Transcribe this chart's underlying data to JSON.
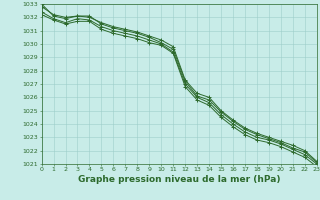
{
  "x": [
    0,
    1,
    2,
    3,
    4,
    5,
    6,
    7,
    8,
    9,
    10,
    11,
    12,
    13,
    14,
    15,
    16,
    17,
    18,
    19,
    20,
    21,
    22,
    23
  ],
  "lines": [
    [
      1032.8,
      1032.2,
      1032.0,
      1032.1,
      1032.0,
      1031.6,
      1031.3,
      1031.1,
      1030.9,
      1030.6,
      1030.3,
      1029.8,
      1027.3,
      1026.3,
      1026.0,
      1025.0,
      1024.3,
      1023.7,
      1023.3,
      1023.0,
      1022.7,
      1022.4,
      1022.0,
      1021.2
    ],
    [
      1032.4,
      1031.9,
      1031.6,
      1031.9,
      1031.8,
      1031.3,
      1031.0,
      1030.8,
      1030.6,
      1030.3,
      1030.0,
      1029.4,
      1027.0,
      1026.0,
      1025.6,
      1024.7,
      1024.0,
      1023.4,
      1023.0,
      1022.8,
      1022.5,
      1022.1,
      1021.7,
      1021.0
    ],
    [
      1032.2,
      1031.8,
      1031.5,
      1031.7,
      1031.7,
      1031.1,
      1030.8,
      1030.6,
      1030.4,
      1030.1,
      1029.9,
      1029.3,
      1026.8,
      1025.8,
      1025.4,
      1024.5,
      1023.8,
      1023.2,
      1022.8,
      1022.6,
      1022.3,
      1021.9,
      1021.5,
      1020.8
    ],
    [
      1033.0,
      1032.1,
      1031.9,
      1032.1,
      1032.1,
      1031.5,
      1031.2,
      1031.0,
      1030.8,
      1030.5,
      1030.1,
      1029.6,
      1027.2,
      1026.1,
      1025.8,
      1024.9,
      1024.2,
      1023.6,
      1023.2,
      1022.9,
      1022.6,
      1022.2,
      1021.9,
      1021.1
    ]
  ],
  "line_color": "#2d6a2d",
  "marker": "+",
  "bg_color": "#c8ece8",
  "grid_color": "#9ececa",
  "ylim": [
    1021,
    1033
  ],
  "xlim": [
    0,
    23
  ],
  "ytick_min": 1021,
  "ytick_max": 1033,
  "xticks": [
    0,
    1,
    2,
    3,
    4,
    5,
    6,
    7,
    8,
    9,
    10,
    11,
    12,
    13,
    14,
    15,
    16,
    17,
    18,
    19,
    20,
    21,
    22,
    23
  ],
  "xlabel": "Graphe pression niveau de la mer (hPa)",
  "xlabel_fontsize": 6.5,
  "tick_fontsize": 4.5,
  "line_width": 0.7,
  "marker_size": 2.5,
  "marker_edge_width": 0.7
}
